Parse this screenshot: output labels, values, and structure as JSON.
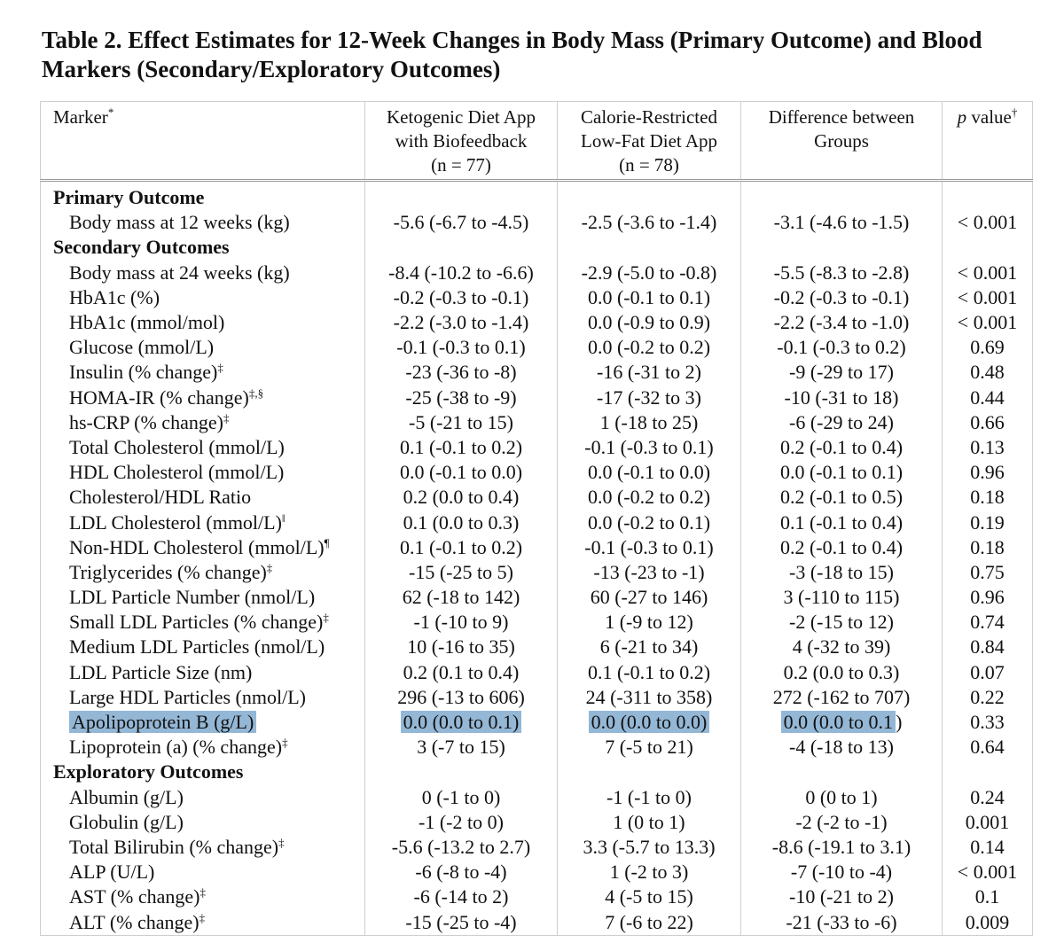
{
  "title": "Table 2. Effect Estimates for 12-Week Changes in Body Mass (Primary Outcome) and Blood Markers (Secondary/Exploratory Outcomes)",
  "header": {
    "marker": "Marker",
    "marker_mark": "*",
    "col2_line1": "Ketogenic Diet App",
    "col2_line2": "with Biofeedback",
    "col2_line3": "(n = 77)",
    "col3_line1": "Calorie-Restricted",
    "col3_line2": "Low-Fat Diet App",
    "col3_line3": "(n = 78)",
    "col4_line1": "Difference between",
    "col4_line2": "Groups",
    "col5_p": "p",
    "col5_value": "value",
    "col5_mark": "†"
  },
  "sections": {
    "primary": "Primary Outcome",
    "secondary": "Secondary Outcomes",
    "exploratory": "Exploratory Outcomes"
  },
  "rows": [
    {
      "label": "Body mass at 12 weeks (kg)",
      "mark": "",
      "keto": "-5.6 (-6.7 to -4.5)",
      "lowfat": "-2.5 (-3.6 to -1.4)",
      "diff": "-3.1 (-4.6 to -1.5)",
      "p": "< 0.001"
    },
    {
      "label": "Body mass at 24 weeks (kg)",
      "mark": "",
      "keto": "-8.4 (-10.2 to -6.6)",
      "lowfat": "-2.9 (-5.0 to -0.8)",
      "diff": "-5.5 (-8.3 to -2.8)",
      "p": "< 0.001"
    },
    {
      "label": "HbA1c (%)",
      "mark": "",
      "keto": "-0.2 (-0.3 to -0.1)",
      "lowfat": "0.0 (-0.1 to 0.1)",
      "diff": "-0.2 (-0.3 to -0.1)",
      "p": "< 0.001"
    },
    {
      "label": "HbA1c (mmol/mol)",
      "mark": "",
      "keto": "-2.2 (-3.0 to -1.4)",
      "lowfat": "0.0 (-0.9 to 0.9)",
      "diff": "-2.2 (-3.4 to -1.0)",
      "p": "< 0.001"
    },
    {
      "label": "Glucose (mmol/L)",
      "mark": "",
      "keto": "-0.1 (-0.3 to 0.1)",
      "lowfat": "0.0 (-0.2 to 0.2)",
      "diff": "-0.1 (-0.3 to 0.2)",
      "p": "0.69"
    },
    {
      "label": "Insulin (% change)",
      "mark": "‡",
      "keto": "-23 (-36 to -8)",
      "lowfat": "-16 (-31 to 2)",
      "diff": "-9 (-29 to 17)",
      "p": "0.48"
    },
    {
      "label": "HOMA-IR (% change)",
      "mark": "‡,§",
      "keto": "-25 (-38 to -9)",
      "lowfat": "-17 (-32 to 3)",
      "diff": "-10 (-31 to 18)",
      "p": "0.44"
    },
    {
      "label": "hs-CRP (% change)",
      "mark": "‡",
      "keto": "-5 (-21 to 15)",
      "lowfat": "1 (-18 to 25)",
      "diff": "-6 (-29 to 24)",
      "p": "0.66"
    },
    {
      "label": "Total Cholesterol (mmol/L)",
      "mark": "",
      "keto": "0.1 (-0.1 to 0.2)",
      "lowfat": "-0.1 (-0.3 to 0.1)",
      "diff": "0.2 (-0.1 to 0.4)",
      "p": "0.13"
    },
    {
      "label": "HDL Cholesterol (mmol/L)",
      "mark": "",
      "keto": "0.0 (-0.1 to 0.0)",
      "lowfat": "0.0 (-0.1 to 0.0)",
      "diff": "0.0 (-0.1 to 0.1)",
      "p": "0.96"
    },
    {
      "label": "Cholesterol/HDL Ratio",
      "mark": "",
      "keto": "0.2 (0.0 to 0.4)",
      "lowfat": "0.0 (-0.2 to 0.2)",
      "diff": "0.2 (-0.1 to 0.5)",
      "p": "0.18"
    },
    {
      "label": "LDL Cholesterol (mmol/L)",
      "mark": "‖",
      "keto": "0.1 (0.0 to 0.3)",
      "lowfat": "0.0 (-0.2 to 0.1)",
      "diff": "0.1 (-0.1 to 0.4)",
      "p": "0.19"
    },
    {
      "label": "Non-HDL Cholesterol (mmol/L)",
      "mark": "¶",
      "keto": "0.1 (-0.1 to 0.2)",
      "lowfat": "-0.1 (-0.3 to 0.1)",
      "diff": "0.2 (-0.1 to 0.4)",
      "p": "0.18"
    },
    {
      "label": "Triglycerides (% change)",
      "mark": "‡",
      "keto": "-15 (-25 to 5)",
      "lowfat": "-13 (-23 to -1)",
      "diff": "-3 (-18 to 15)",
      "p": "0.75"
    },
    {
      "label": "LDL Particle Number (nmol/L)",
      "mark": "",
      "keto": "62 (-18 to 142)",
      "lowfat": "60 (-27 to 146)",
      "diff": "3 (-110 to 115)",
      "p": "0.96"
    },
    {
      "label": "Small LDL Particles (% change)",
      "mark": "‡",
      "keto": "-1 (-10 to 9)",
      "lowfat": "1 (-9 to 12)",
      "diff": "-2 (-15 to 12)",
      "p": "0.74"
    },
    {
      "label": "Medium LDL Particles (nmol/L)",
      "mark": "",
      "keto": "10 (-16 to 35)",
      "lowfat": "6 (-21 to 34)",
      "diff": "4 (-32 to 39)",
      "p": "0.84"
    },
    {
      "label": "LDL Particle Size (nm)",
      "mark": "",
      "keto": "0.2 (0.1 to 0.4)",
      "lowfat": "0.1 (-0.1 to 0.2)",
      "diff": "0.2 (0.0 to 0.3)",
      "p": "0.07"
    },
    {
      "label": "Large HDL Particles (nmol/L)",
      "mark": "",
      "keto": "296 (-13 to 606)",
      "lowfat": "24 (-311 to 358)",
      "diff": "272 (-162 to 707)",
      "p": "0.22"
    },
    {
      "label": "Apolipoprotein B (g/L)",
      "mark": "",
      "keto": "0.0 (0.0 to 0.1)",
      "lowfat": "0.0 (0.0 to 0.0)",
      "diff_hl": "0.0 (0.0 to 0.1",
      "diff_rest": ")",
      "p": "0.33"
    },
    {
      "label": "Lipoprotein (a) (% change)",
      "mark": "‡",
      "keto": "3 (-7 to 15)",
      "lowfat": "7 (-5 to 21)",
      "diff": "-4 (-18 to 13)",
      "p": "0.64"
    },
    {
      "label": "Albumin (g/L)",
      "mark": "",
      "keto": "0 (-1 to 0)",
      "lowfat": "-1 (-1 to 0)",
      "diff": "0 (0 to 1)",
      "p": "0.24"
    },
    {
      "label": "Globulin (g/L)",
      "mark": "",
      "keto": "-1 (-2 to 0)",
      "lowfat": "1 (0 to 1)",
      "diff": "-2 (-2 to -1)",
      "p": "0.001"
    },
    {
      "label": "Total Bilirubin (% change)",
      "mark": "‡",
      "keto": "-5.6 (-13.2 to 2.7)",
      "lowfat": "3.3 (-5.7 to 13.3)",
      "diff": "-8.6 (-19.1 to 3.1)",
      "p": "0.14"
    },
    {
      "label": "ALP (U/L)",
      "mark": "",
      "keto": "-6 (-8 to -4)",
      "lowfat": "1 (-2 to 3)",
      "diff": "-7 (-10 to -4)",
      "p": "< 0.001"
    },
    {
      "label": "AST (% change)",
      "mark": "‡",
      "keto": "-6 (-14 to 2)",
      "lowfat": "4 (-5 to 15)",
      "diff": "-10 (-21 to 2)",
      "p": "0.1"
    },
    {
      "label": "ALT (% change)",
      "mark": "‡",
      "keto": "-15 (-25 to -4)",
      "lowfat": "7 (-6 to 22)",
      "diff": "-21 (-33 to -6)",
      "p": "0.009"
    }
  ],
  "highlight_color": "#94b7d6"
}
